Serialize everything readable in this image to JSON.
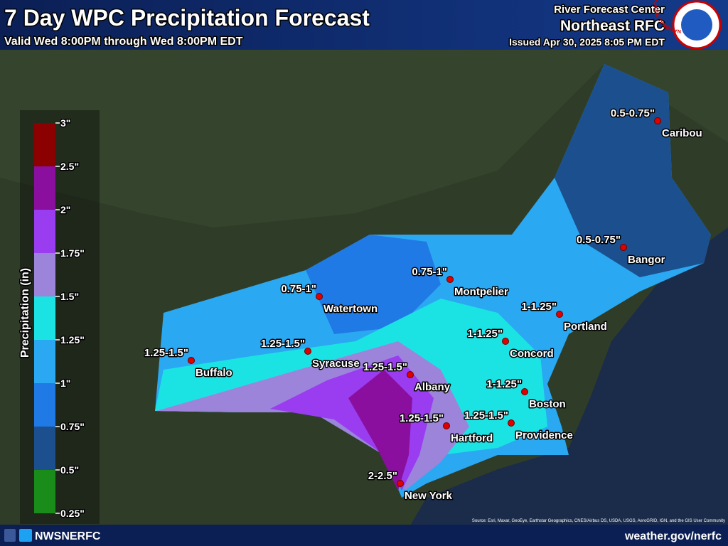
{
  "header": {
    "title": "7 Day WPC Precipitation Forecast",
    "subtitle": "Valid Wed 8:00PM through Wed 8:00PM EDT",
    "center_label": "River Forecast Center",
    "center_name": "Northeast RFC",
    "issued": "Issued Apr 30, 2025 8:05 PM EDT",
    "logo_text": "NATIONAL WEATHER SERVICE"
  },
  "legend": {
    "title": "Precipitation (in)",
    "ticks": [
      {
        "value": 0.25,
        "label": "0.25\""
      },
      {
        "value": 0.5,
        "label": "0.5\""
      },
      {
        "value": 0.75,
        "label": "0.75\""
      },
      {
        "value": 1,
        "label": "1\""
      },
      {
        "value": 1.25,
        "label": "1.25\""
      },
      {
        "value": 1.5,
        "label": "1.5\""
      },
      {
        "value": 1.75,
        "label": "1.75\""
      },
      {
        "value": 2,
        "label": "2\""
      },
      {
        "value": 2.5,
        "label": "2.5\""
      },
      {
        "value": 3,
        "label": "3\""
      }
    ],
    "colors": [
      "#1a8c1a",
      "#1c4f8e",
      "#1f7ae6",
      "#2ba8f2",
      "#1ce3e3",
      "#9b84da",
      "#9a3cf0",
      "#8a0f9e",
      "#8b0000"
    ]
  },
  "cities": [
    {
      "name": "Caribou",
      "forecast": "0.5-0.75\""
    },
    {
      "name": "Bangor",
      "forecast": "0.5-0.75\""
    },
    {
      "name": "Montpelier",
      "forecast": "0.75-1\""
    },
    {
      "name": "Watertown",
      "forecast": "0.75-1\""
    },
    {
      "name": "Portland",
      "forecast": "1-1.25\""
    },
    {
      "name": "Concord",
      "forecast": "1-1.25\""
    },
    {
      "name": "Buffalo",
      "forecast": "1.25-1.5\""
    },
    {
      "name": "Syracuse",
      "forecast": "1.25-1.5\""
    },
    {
      "name": "Albany",
      "forecast": "1.25-1.5\""
    },
    {
      "name": "Boston",
      "forecast": "1-1.25\""
    },
    {
      "name": "Hartford",
      "forecast": "1.25-1.5\""
    },
    {
      "name": "Providence",
      "forecast": "1.25-1.5\""
    },
    {
      "name": "New York",
      "forecast": "2-2.5\""
    }
  ],
  "footer": {
    "social": "NWSNERFC",
    "website": "weather.gov/nerfc",
    "source": "Source: Esri, Maxar, GeoEye, Earthstar Geographics, CNES/Airbus DS, USDA, USGS, AeroGRID, IGN, and the GIS User Community"
  }
}
